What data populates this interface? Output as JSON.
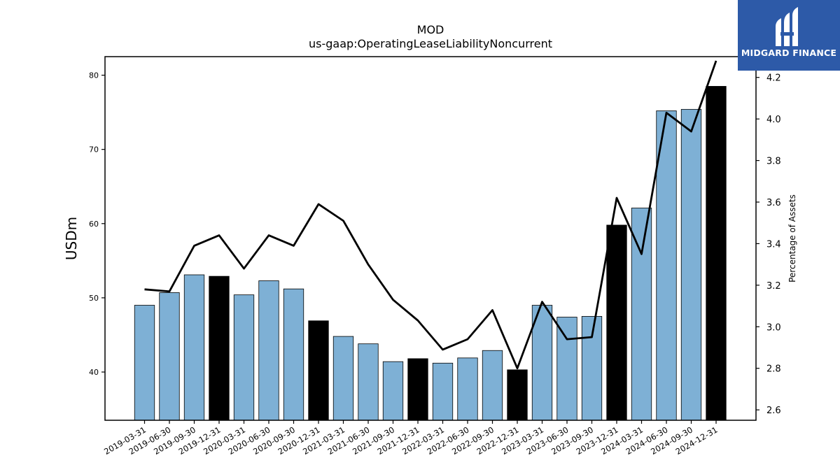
{
  "brand": {
    "name": "MIDGARD FINANCE",
    "logo_icon": "midgard-logo-icon",
    "background": "#2d5aa8"
  },
  "chart_data": {
    "type": "bar",
    "title": "MOD",
    "subtitle": "us-gaap:OperatingLeaseLiabilityNoncurrent",
    "ylabel": "USDm",
    "y2label": "Percentage of Assets",
    "ylim": [
      33.5,
      82.5
    ],
    "y2lim": [
      2.55,
      4.3
    ],
    "yticks": [
      40,
      50,
      60,
      70,
      80
    ],
    "y2ticks": [
      "2.6",
      "2.8",
      "3.0",
      "3.2",
      "3.4",
      "3.6",
      "3.8",
      "4.0",
      "4.2"
    ],
    "grid": false,
    "colors": {
      "quarter": "#7eb0d5",
      "year_end": "#000000",
      "line": "#000000"
    },
    "categories": [
      "2019-03-31",
      "2019-06-30",
      "2019-09-30",
      "2019-12-31",
      "2020-03-31",
      "2020-06-30",
      "2020-09-30",
      "2020-12-31",
      "2021-03-31",
      "2021-06-30",
      "2021-09-30",
      "2021-12-31",
      "2022-03-31",
      "2022-06-30",
      "2022-09-30",
      "2022-12-31",
      "2023-03-31",
      "2023-06-30",
      "2023-09-30",
      "2023-12-31",
      "2024-03-31",
      "2024-06-30",
      "2024-09-30",
      "2024-12-31"
    ],
    "series": [
      {
        "kind": "bar",
        "values": [
          49.0,
          50.7,
          53.1,
          52.9,
          50.4,
          52.3,
          51.2,
          46.9,
          44.8,
          43.8,
          41.4,
          41.8,
          41.2,
          41.9,
          42.9,
          40.3,
          49.0,
          47.4,
          47.5,
          59.8,
          62.1,
          75.2,
          75.4,
          78.5
        ],
        "year_end": [
          false,
          false,
          false,
          true,
          false,
          false,
          false,
          true,
          false,
          false,
          false,
          true,
          false,
          false,
          false,
          true,
          false,
          false,
          false,
          true,
          false,
          false,
          false,
          true
        ]
      },
      {
        "kind": "line",
        "axis": "right",
        "values": [
          3.18,
          3.17,
          3.39,
          3.44,
          3.28,
          3.44,
          3.39,
          3.59,
          3.51,
          3.3,
          3.13,
          3.03,
          2.89,
          2.94,
          3.08,
          2.8,
          3.12,
          2.94,
          2.95,
          3.62,
          3.35,
          4.03,
          3.94,
          4.28
        ]
      }
    ]
  }
}
